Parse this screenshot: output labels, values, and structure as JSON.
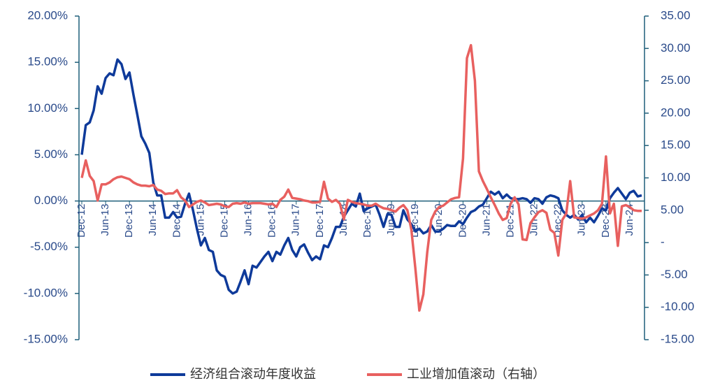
{
  "chart_data": {
    "type": "line",
    "categories": [
      "Dec-12",
      null,
      null,
      null,
      null,
      null,
      "Jun-13",
      null,
      null,
      null,
      null,
      null,
      "Dec-13",
      null,
      null,
      null,
      null,
      null,
      "Jun-14",
      null,
      null,
      null,
      null,
      null,
      "Dec-14",
      null,
      null,
      null,
      null,
      null,
      "Jun-15",
      null,
      null,
      null,
      null,
      null,
      "Dec-15",
      null,
      null,
      null,
      null,
      null,
      "Jun-16",
      null,
      null,
      null,
      null,
      null,
      "Dec-16",
      null,
      null,
      null,
      null,
      null,
      "Jun-17",
      null,
      null,
      null,
      null,
      null,
      "Dec-17",
      null,
      null,
      null,
      null,
      null,
      "Jun-18",
      null,
      null,
      null,
      null,
      null,
      "Dec-18",
      null,
      null,
      null,
      null,
      null,
      "Jun-19",
      null,
      null,
      null,
      null,
      null,
      "Dec-19",
      null,
      null,
      null,
      null,
      null,
      "Jun-20",
      null,
      null,
      null,
      null,
      null,
      "Dec-20",
      null,
      null,
      null,
      null,
      null,
      "Jun-21",
      null,
      null,
      null,
      null,
      null,
      "Dec-21",
      null,
      null,
      null,
      null,
      null,
      "Jun-22",
      null,
      null,
      null,
      null,
      null,
      "Dec-22",
      null,
      null,
      null,
      null,
      null,
      "Jun-23",
      null,
      null,
      null,
      null,
      null,
      "Dec-23",
      null,
      null,
      null,
      null,
      null,
      "Jun-24",
      null,
      null,
      null
    ],
    "series": [
      {
        "name": "经济组合滚动年度收益",
        "color": "#0e3a9a",
        "axis": "y",
        "values": [
          5.0,
          8.2,
          8.5,
          9.8,
          12.4,
          11.6,
          13.3,
          13.8,
          13.6,
          15.3,
          14.8,
          13.2,
          13.9,
          11.5,
          9.3,
          7.0,
          6.2,
          5.2,
          2.0,
          0.6,
          0.6,
          -1.8,
          -1.8,
          -1.2,
          -1.8,
          -1.7,
          -0.3,
          0.8,
          -1.0,
          -3.0,
          -4.8,
          -4.0,
          -5.3,
          -5.5,
          -7.5,
          -8.0,
          -8.2,
          -9.6,
          -10.0,
          -9.8,
          -8.7,
          -7.5,
          -9.0,
          -7.0,
          -7.2,
          -6.6,
          -6.0,
          -5.5,
          -6.5,
          -5.5,
          -5.8,
          -4.8,
          -4.0,
          -5.3,
          -6.0,
          -5.0,
          -4.7,
          -5.6,
          -6.4,
          -6.0,
          -6.3,
          -4.8,
          -5.0,
          -4.0,
          -2.8,
          -2.8,
          -1.7,
          -1.0,
          -0.3,
          -0.6,
          0.8,
          -1.1,
          -0.8,
          -0.6,
          -0.4,
          -1.5,
          -2.8,
          -1.4,
          -1.5,
          -2.8,
          -2.8,
          -1.0,
          -2.0,
          -2.5,
          -3.3,
          -3.0,
          -3.5,
          -3.3,
          -2.6,
          -3.3,
          -3.3,
          -3.0,
          -2.6,
          -2.7,
          -2.7,
          -2.2,
          -2.5,
          -1.8,
          -1.2,
          -1.0,
          -0.6,
          -0.4,
          0.3,
          1.0,
          0.7,
          1.0,
          0.3,
          0.7,
          0.3,
          0.2,
          0.2,
          0.3,
          0.2,
          -0.2,
          0.3,
          0.2,
          -0.3,
          0.4,
          0.6,
          0.5,
          0.3,
          -1.0,
          -1.5,
          -1.8,
          -1.5,
          -2.0,
          -1.5,
          -2.3,
          -1.8,
          -2.3,
          -1.6,
          -0.8,
          -1.0,
          0.3,
          0.9,
          1.4,
          0.8,
          0.2,
          0.9,
          1.1,
          0.5,
          0.6
        ]
      },
      {
        "name": "工业增加值滚动（右轴）",
        "color": "#e8605f",
        "axis": "y2",
        "values": [
          10.0,
          12.7,
          10.3,
          9.5,
          6.5,
          9.0,
          9.0,
          9.3,
          9.8,
          10.1,
          10.2,
          10.0,
          9.8,
          9.3,
          9.0,
          8.8,
          8.8,
          8.7,
          8.9,
          8.2,
          8.0,
          7.5,
          7.6,
          7.6,
          8.1,
          7.0,
          6.5,
          5.5,
          5.9,
          6.3,
          6.5,
          6.2,
          5.8,
          5.9,
          6.0,
          5.9,
          5.6,
          5.5,
          6.0,
          6.1,
          6.0,
          6.2,
          6.0,
          6.1,
          6.1,
          6.1,
          6.0,
          5.9,
          6.0,
          5.5,
          6.6,
          7.1,
          8.2,
          6.9,
          6.8,
          6.7,
          6.5,
          6.4,
          6.2,
          6.2,
          6.3,
          9.4,
          6.8,
          6.3,
          6.6,
          6.0,
          3.6,
          6.6,
          6.3,
          6.1,
          6.0,
          5.9,
          5.7,
          5.7,
          6.0,
          5.6,
          5.3,
          5.2,
          5.0,
          4.8,
          5.4,
          5.8,
          5.0,
          2.0,
          -4.0,
          -10.5,
          -8.0,
          -1.5,
          3.5,
          4.8,
          5.5,
          5.7,
          6.2,
          6.7,
          6.9,
          7.0,
          13.0,
          28.5,
          30.5,
          25.0,
          11.0,
          9.5,
          8.3,
          7.0,
          5.8,
          4.5,
          3.5,
          3.8,
          6.0,
          7.0,
          5.9,
          0.5,
          0.4,
          3.0,
          3.9,
          4.7,
          5.0,
          4.6,
          2.0,
          1.5,
          -2.0,
          3.5,
          4.5,
          9.5,
          3.9,
          3.8,
          3.7,
          3.9,
          4.2,
          4.5,
          5.0,
          6.0,
          13.3,
          4.5,
          6.0,
          -0.5,
          5.6,
          5.8,
          5.5,
          5.0,
          4.9,
          4.9
        ]
      }
    ],
    "ylim": [
      -15,
      20
    ],
    "yticks": [
      {
        "value": -15,
        "label": "-15.00%"
      },
      {
        "value": -10,
        "label": "-10.00%"
      },
      {
        "value": -5,
        "label": "-5.00%"
      },
      {
        "value": 0,
        "label": "0.00%"
      },
      {
        "value": 5,
        "label": "5.00%"
      },
      {
        "value": 10,
        "label": "10.00%"
      },
      {
        "value": 15,
        "label": "15.00%"
      },
      {
        "value": 20,
        "label": "20.00%"
      }
    ],
    "y2lim": [
      -15,
      35
    ],
    "y2ticks": [
      {
        "value": -15,
        "label": "-15.00"
      },
      {
        "value": -10,
        "label": "-10.00"
      },
      {
        "value": -5,
        "label": "-5.00"
      },
      {
        "value": 0,
        "label": "-"
      },
      {
        "value": 5,
        "label": "5.00"
      },
      {
        "value": 10,
        "label": "10.00"
      },
      {
        "value": 15,
        "label": "15.00"
      },
      {
        "value": 20,
        "label": "20.00"
      },
      {
        "value": 25,
        "label": "25.00"
      },
      {
        "value": 30,
        "label": "30.00"
      },
      {
        "value": 35,
        "label": "35.00"
      }
    ],
    "grid": false,
    "legend": "bottom"
  }
}
